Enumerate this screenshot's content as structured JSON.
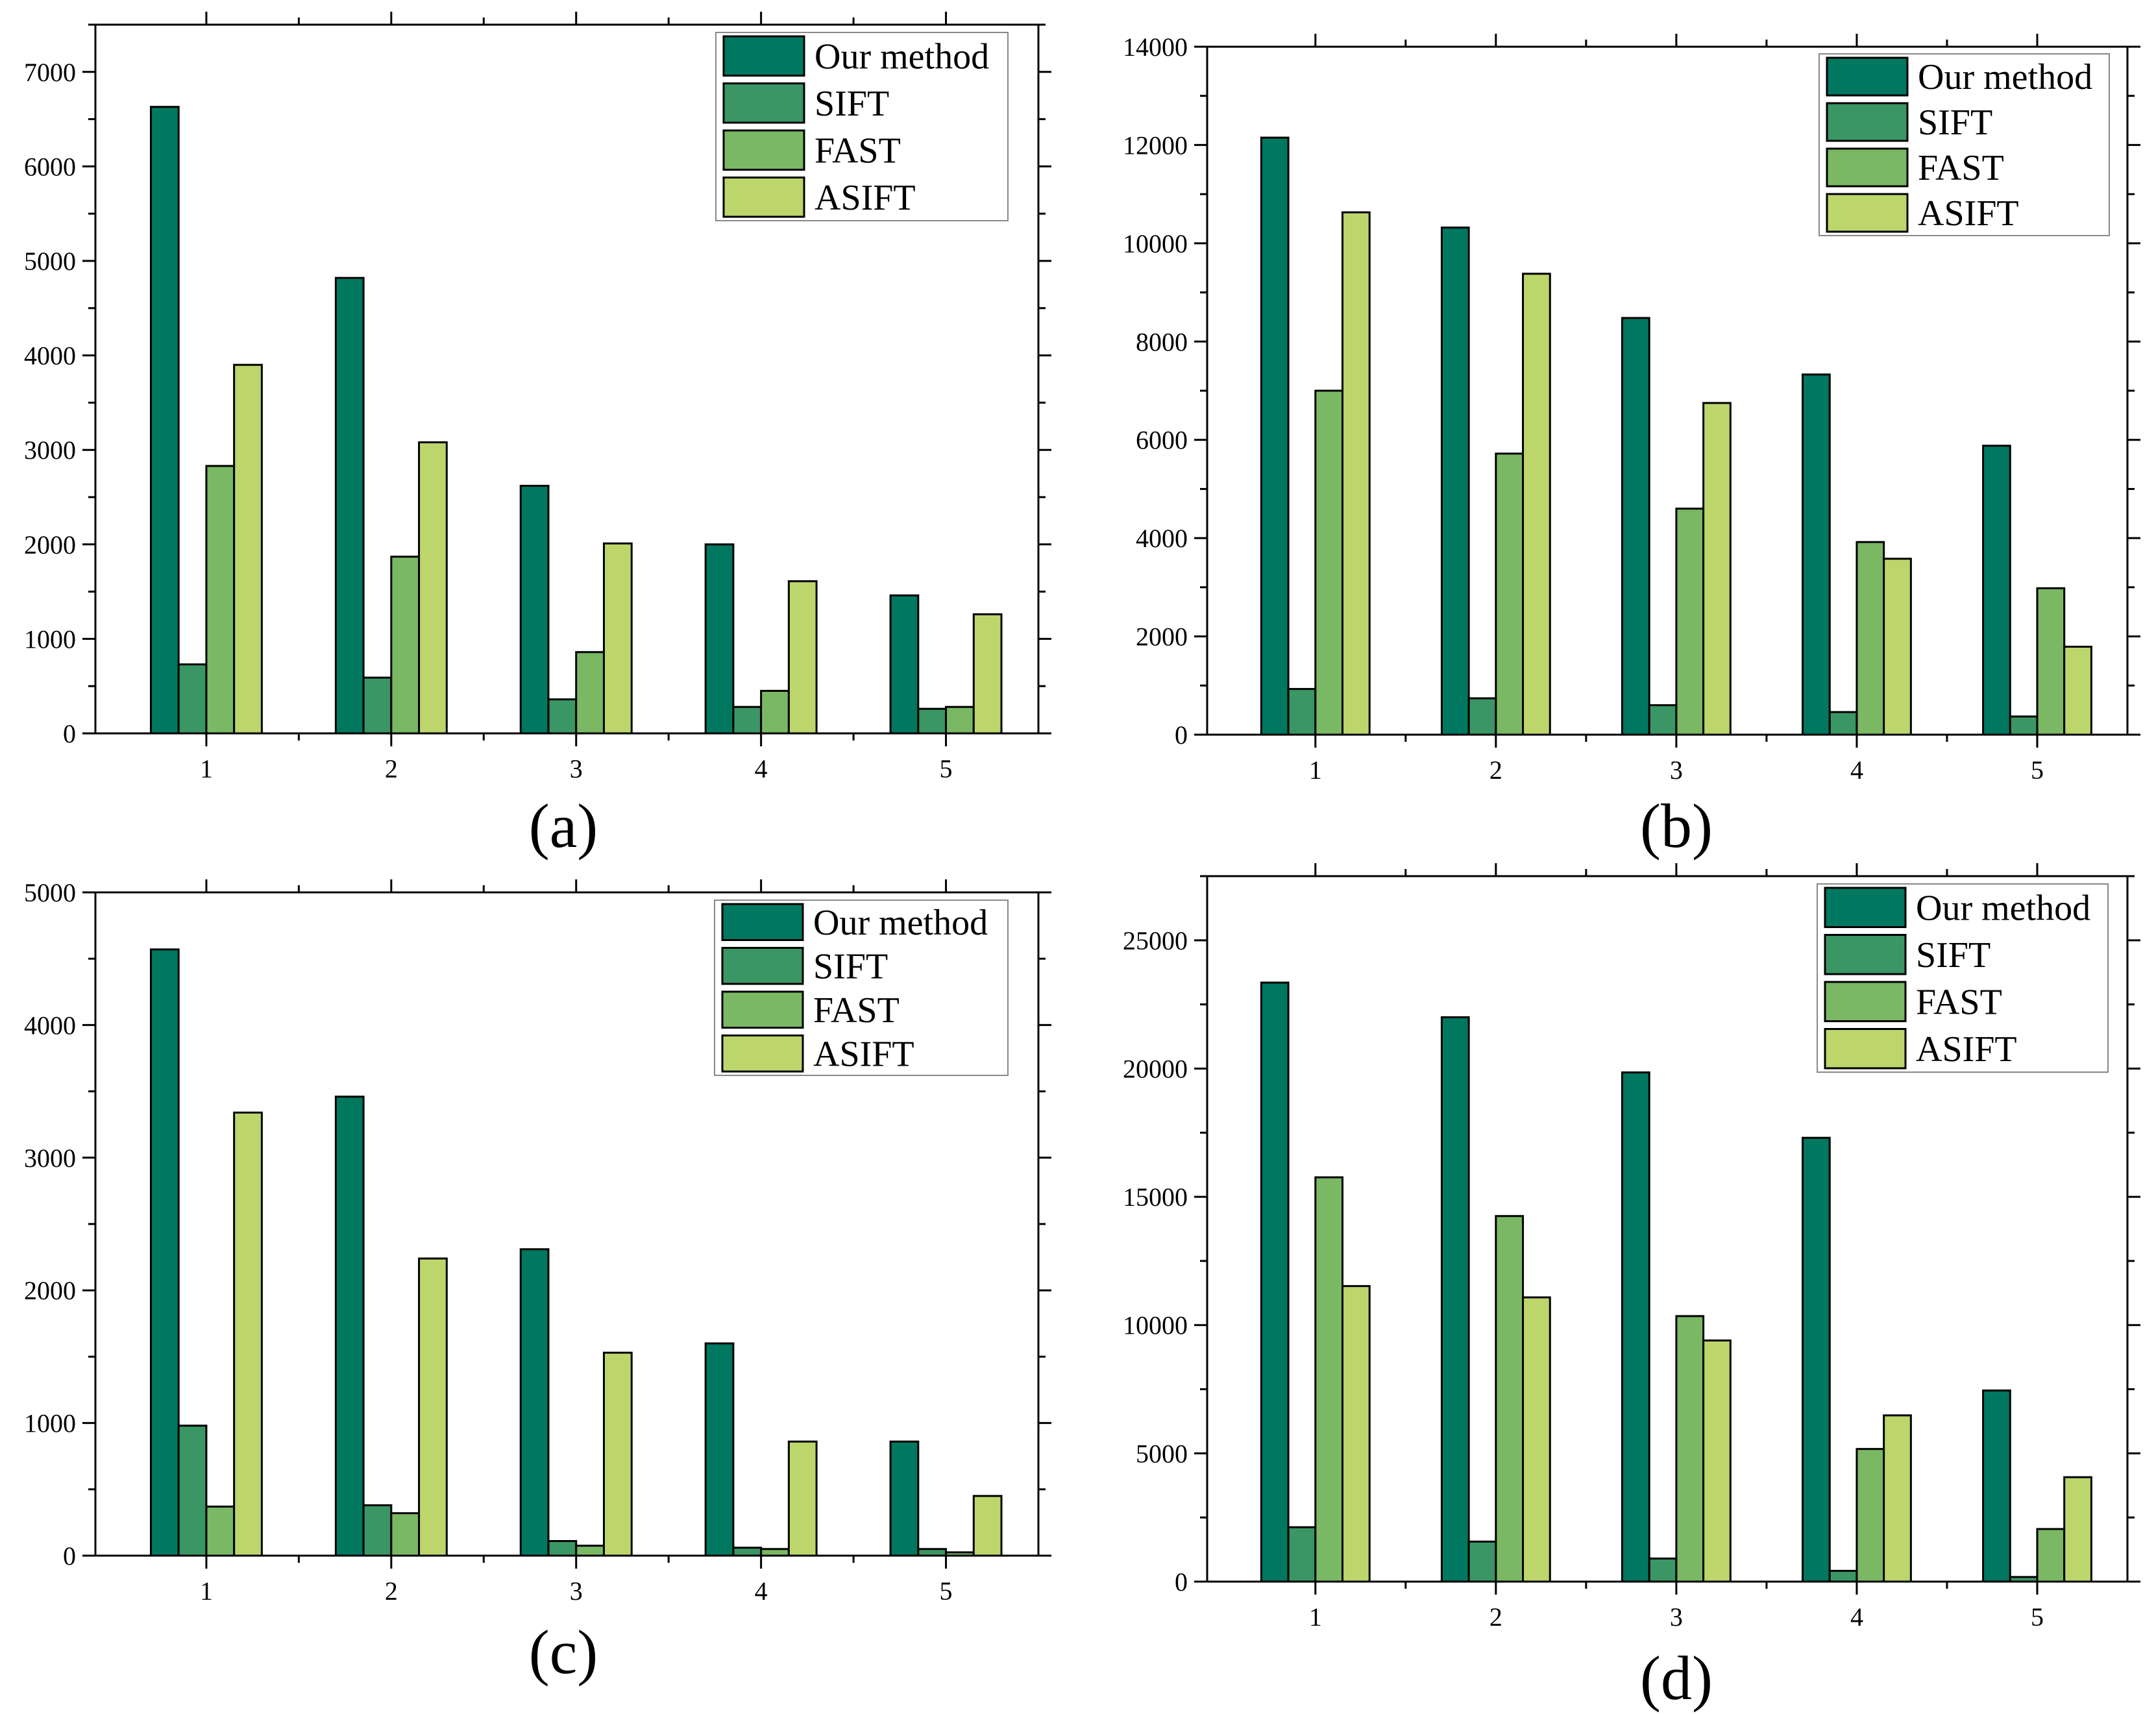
{
  "colors": {
    "Our method": "#007860",
    "SIFT": "#3a9664",
    "FAST": "#7ab864",
    "ASIFT": "#bcd66c"
  },
  "chart_data": [
    {
      "type": "bar",
      "panel_label": "(a)",
      "categories": [
        "1",
        "2",
        "3",
        "4",
        "5"
      ],
      "series": [
        {
          "name": "Our method",
          "values": [
            6630,
            4820,
            2620,
            2000,
            1460
          ]
        },
        {
          "name": "SIFT",
          "values": [
            730,
            590,
            360,
            280,
            260
          ]
        },
        {
          "name": "FAST",
          "values": [
            2830,
            1870,
            860,
            450,
            280
          ]
        },
        {
          "name": "ASIFT",
          "values": [
            3900,
            3080,
            2010,
            1610,
            1260
          ]
        }
      ],
      "ylim": [
        0,
        7500
      ],
      "major_ticks": [
        0,
        1000,
        2000,
        3000,
        4000,
        5000,
        6000,
        7000
      ],
      "minor_step": 500,
      "legend_position": "top-right"
    },
    {
      "type": "bar",
      "panel_label": "(b)",
      "categories": [
        "1",
        "2",
        "3",
        "4",
        "5"
      ],
      "series": [
        {
          "name": "Our method",
          "values": [
            12150,
            10320,
            8480,
            7330,
            5880
          ]
        },
        {
          "name": "SIFT",
          "values": [
            930,
            740,
            600,
            460,
            370
          ]
        },
        {
          "name": "FAST",
          "values": [
            7000,
            5720,
            4600,
            3920,
            2980
          ]
        },
        {
          "name": "ASIFT",
          "values": [
            10630,
            9380,
            6750,
            3580,
            1790
          ]
        }
      ],
      "ylim": [
        0,
        14000
      ],
      "major_ticks": [
        0,
        2000,
        4000,
        6000,
        8000,
        10000,
        12000,
        14000
      ],
      "minor_step": 1000,
      "legend_position": "top-right"
    },
    {
      "type": "bar",
      "panel_label": "(c)",
      "categories": [
        "1",
        "2",
        "3",
        "4",
        "5"
      ],
      "series": [
        {
          "name": "Our method",
          "values": [
            4570,
            3460,
            2310,
            1600,
            860
          ]
        },
        {
          "name": "SIFT",
          "values": [
            980,
            380,
            110,
            60,
            50
          ]
        },
        {
          "name": "FAST",
          "values": [
            370,
            320,
            75,
            50,
            25
          ]
        },
        {
          "name": "ASIFT",
          "values": [
            3340,
            2240,
            1530,
            860,
            450
          ]
        }
      ],
      "ylim": [
        0,
        5000
      ],
      "major_ticks": [
        0,
        1000,
        2000,
        3000,
        4000,
        5000
      ],
      "minor_step": 500,
      "legend_position": "top-right"
    },
    {
      "type": "bar",
      "panel_label": "(d)",
      "categories": [
        "1",
        "2",
        "3",
        "4",
        "5"
      ],
      "series": [
        {
          "name": "Our method",
          "values": [
            23350,
            22000,
            19850,
            17300,
            7450
          ]
        },
        {
          "name": "SIFT",
          "values": [
            2120,
            1560,
            900,
            420,
            180
          ]
        },
        {
          "name": "FAST",
          "values": [
            15760,
            14250,
            10350,
            5170,
            2050
          ]
        },
        {
          "name": "ASIFT",
          "values": [
            11520,
            11080,
            9400,
            6480,
            4070
          ]
        }
      ],
      "ylim": [
        0,
        27500
      ],
      "major_ticks": [
        0,
        5000,
        10000,
        15000,
        20000,
        25000
      ],
      "minor_step": 2500,
      "legend_position": "top-right"
    }
  ]
}
